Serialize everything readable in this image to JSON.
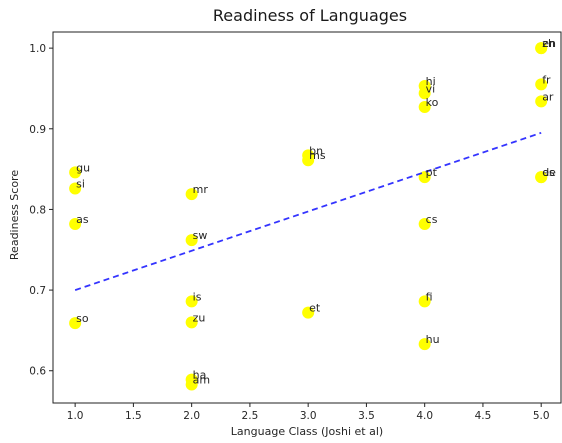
{
  "chart_data": {
    "type": "scatter",
    "title": "Readiness of Languages",
    "xlabel": "Language Class (Joshi et al)",
    "ylabel": "Readiness Score",
    "xlim": [
      0.81,
      5.17
    ],
    "ylim": [
      0.56,
      1.02
    ],
    "x_ticks": [
      1.0,
      1.5,
      2.0,
      2.5,
      3.0,
      3.5,
      4.0,
      4.5,
      5.0
    ],
    "x_tick_labels": [
      "1.0",
      "1.5",
      "2.0",
      "2.5",
      "3.0",
      "3.5",
      "4.0",
      "4.5",
      "5.0"
    ],
    "y_ticks": [
      0.6,
      0.7,
      0.8,
      0.9,
      1.0
    ],
    "y_tick_labels": [
      "0.6",
      "0.7",
      "0.8",
      "0.9",
      "1.0"
    ],
    "grid": false,
    "marker_color": "#ffff00",
    "trend_color": "#1f1fff",
    "trendline": {
      "x": [
        1.0,
        5.0
      ],
      "y": [
        0.7,
        0.895
      ]
    },
    "points": [
      {
        "label": "gu",
        "x": 1,
        "y": 0.846
      },
      {
        "label": "si",
        "x": 1,
        "y": 0.826
      },
      {
        "label": "as",
        "x": 1,
        "y": 0.782
      },
      {
        "label": "so",
        "x": 1,
        "y": 0.659
      },
      {
        "label": "mr",
        "x": 2,
        "y": 0.819
      },
      {
        "label": "sw",
        "x": 2,
        "y": 0.762
      },
      {
        "label": "is",
        "x": 2,
        "y": 0.686
      },
      {
        "label": "zu",
        "x": 2,
        "y": 0.66
      },
      {
        "label": "ha",
        "x": 2,
        "y": 0.589
      },
      {
        "label": "am",
        "x": 2,
        "y": 0.583
      },
      {
        "label": "bn",
        "x": 3,
        "y": 0.867
      },
      {
        "label": "ms",
        "x": 3,
        "y": 0.861
      },
      {
        "label": "et",
        "x": 3,
        "y": 0.672
      },
      {
        "label": "hi",
        "x": 4,
        "y": 0.953
      },
      {
        "label": "vi",
        "x": 4,
        "y": 0.944
      },
      {
        "label": "ko",
        "x": 4,
        "y": 0.927
      },
      {
        "label": "pt",
        "x": 4,
        "y": 0.84
      },
      {
        "label": "cs",
        "x": 4,
        "y": 0.782
      },
      {
        "label": "fi",
        "x": 4,
        "y": 0.686
      },
      {
        "label": "hu",
        "x": 4,
        "y": 0.633
      },
      {
        "label": "en",
        "x": 5,
        "y": 1.0
      },
      {
        "label": "zh",
        "x": 5,
        "y": 1.0
      },
      {
        "label": "fr",
        "x": 5,
        "y": 0.955
      },
      {
        "label": "ar",
        "x": 5,
        "y": 0.934
      },
      {
        "label": "de",
        "x": 5,
        "y": 0.84
      },
      {
        "label": "es",
        "x": 5,
        "y": 0.84
      }
    ]
  }
}
